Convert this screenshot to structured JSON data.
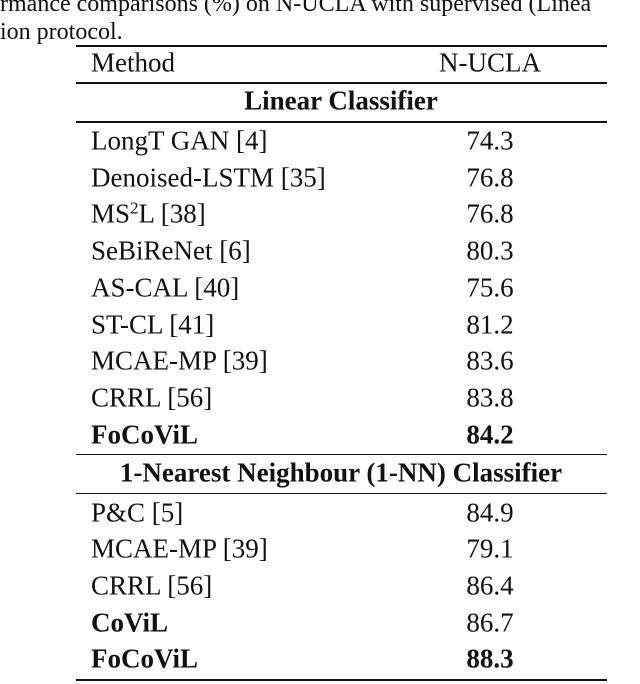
{
  "caption": {
    "line1": "rmance comparisons (%) on N-UCLA with supervised (Linea",
    "line2": "ion protocol."
  },
  "table": {
    "header": [
      "Method",
      "N-UCLA"
    ],
    "sections": [
      {
        "title": "Linear Classifier",
        "rows": [
          {
            "method": "LongT GAN [4]",
            "value": 74.3
          },
          {
            "method": "Denoised-LSTM [35]",
            "value": 76.8
          },
          {
            "method": [
              "MS",
              "2",
              "L [38]"
            ],
            "value": 76.8
          },
          {
            "method": "SeBiReNet [6]",
            "value": 80.3
          },
          {
            "method": "AS-CAL [40]",
            "value": 75.6
          },
          {
            "method": "ST-CL [41]",
            "value": 81.2
          },
          {
            "method": "MCAE-MP [39]",
            "value": 83.6
          },
          {
            "method": "CRRL [56]",
            "value": 83.8
          },
          {
            "method": "FoCoViL",
            "value": 84.2,
            "bold_method": true,
            "bold_value": true
          }
        ]
      },
      {
        "title": "1-Nearest Neighbour (1-NN) Classifier",
        "rows": [
          {
            "method": "P&C [5]",
            "value": 84.9
          },
          {
            "method": "MCAE-MP [39]",
            "value": 79.1
          },
          {
            "method": "CRRL [56]",
            "value": 86.4
          },
          {
            "method": "CoViL",
            "value": 86.7,
            "bold_method": true
          },
          {
            "method": "FoCoViL",
            "value": 88.3,
            "bold_method": true,
            "bold_value": true
          }
        ]
      }
    ]
  }
}
